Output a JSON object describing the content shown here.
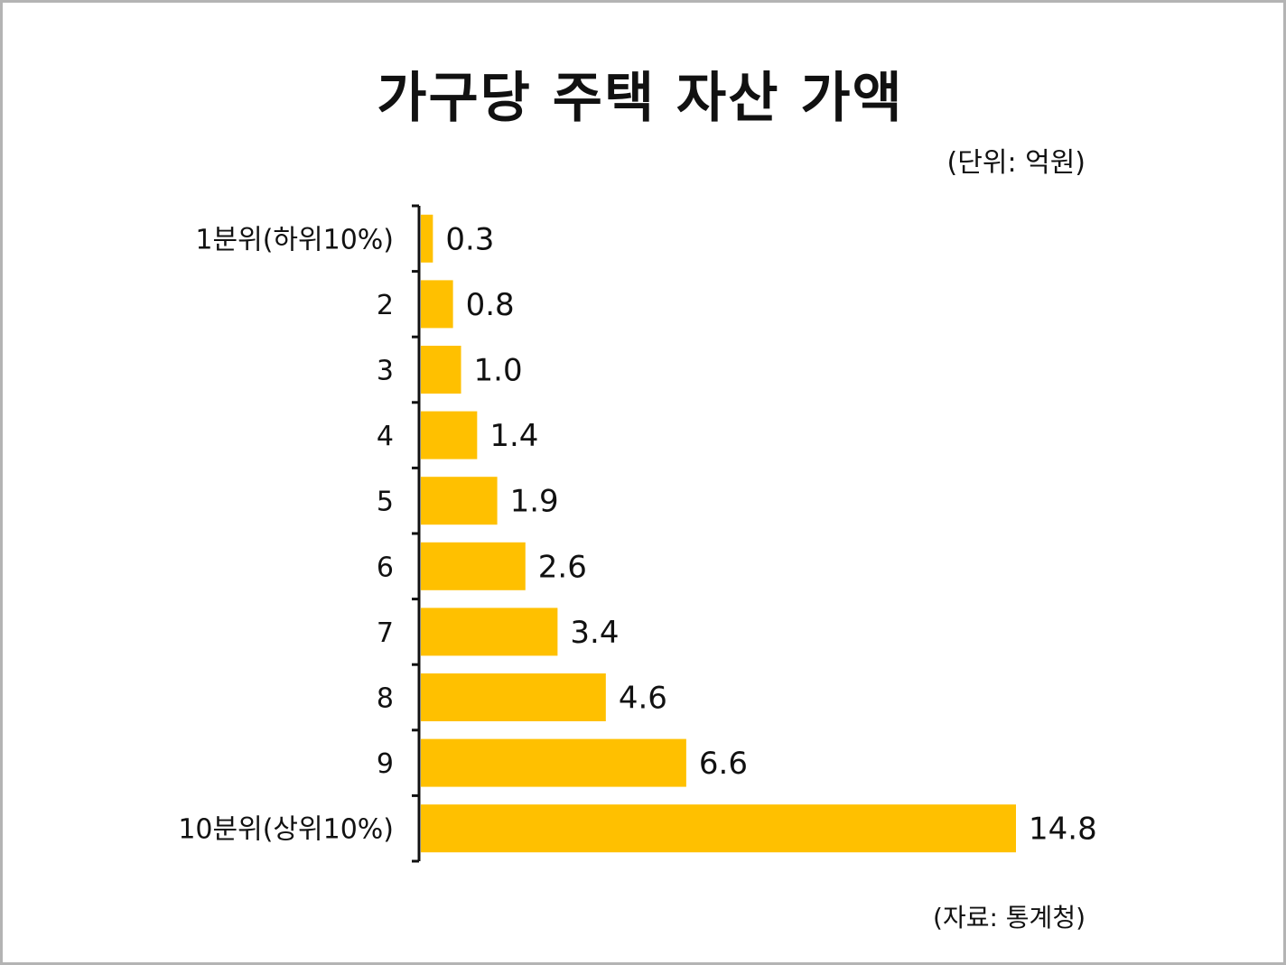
{
  "title": "가구당 주택 자산 가액",
  "unit_note": "(단위: 억원)",
  "source_note": "(자료: 통계청)",
  "chart_data": {
    "type": "bar",
    "orientation": "horizontal",
    "title": "가구당 주택 자산 가액",
    "categories": [
      "1분위(하위10%)",
      "2",
      "3",
      "4",
      "5",
      "6",
      "7",
      "8",
      "9",
      "10분위(상위10%)"
    ],
    "values": [
      0.3,
      0.8,
      1.0,
      1.4,
      1.9,
      2.6,
      3.4,
      4.6,
      6.6,
      14.8
    ],
    "value_labels": [
      "0.3",
      "0.8",
      "1.0",
      "1.4",
      "1.9",
      "2.6",
      "3.4",
      "4.6",
      "6.6",
      "14.8"
    ],
    "unit": "억원",
    "xlim": [
      0,
      14.8
    ],
    "bar_color": "#FFC000",
    "grid": false,
    "legend": "none"
  }
}
